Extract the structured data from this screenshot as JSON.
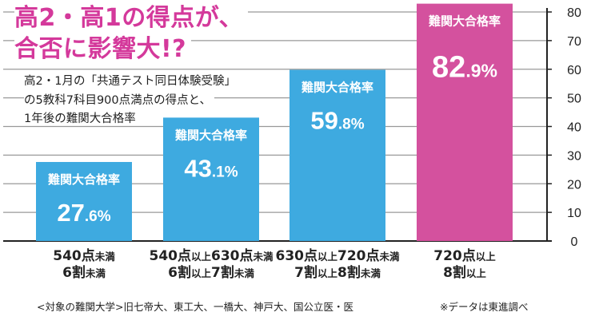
{
  "title_line1": "高2・高1の得点が、",
  "title_line2": "合否に影響大!?",
  "subtitle_lines": [
    "高2・1月の「共通テスト同日体験受験」",
    "の5教科7科目900点満点の得点と、",
    "1年後の難関大合格率"
  ],
  "footnote_left": "<対象の難関大学>旧七帝大、東工大、一橋大、神戸大、国公立医・医",
  "footnote_right": "※データは東進調べ",
  "colors": {
    "bar": "#3eaae0",
    "highlight": "#d4519e",
    "title": "#d4399b",
    "grid": "#999999"
  },
  "chart_data": {
    "type": "bar",
    "categories": [
      {
        "line1": [
          [
            "540点",
            "big"
          ],
          [
            "未満",
            "small"
          ]
        ],
        "line2": [
          [
            "6割",
            "big"
          ],
          [
            "未満",
            "small"
          ]
        ]
      },
      {
        "line1": [
          [
            "540点",
            "big"
          ],
          [
            "以上",
            "small"
          ],
          [
            "630点",
            "big"
          ],
          [
            "未満",
            "small"
          ]
        ],
        "line2": [
          [
            "6割",
            "big"
          ],
          [
            "以上",
            "small"
          ],
          [
            "7割",
            "big"
          ],
          [
            "未満",
            "small"
          ]
        ]
      },
      {
        "line1": [
          [
            "630点",
            "big"
          ],
          [
            "以上",
            "small"
          ],
          [
            "720点",
            "big"
          ],
          [
            "未満",
            "small"
          ]
        ],
        "line2": [
          [
            "7割",
            "big"
          ],
          [
            "以上",
            "small"
          ],
          [
            "8割",
            "big"
          ],
          [
            "未満",
            "small"
          ]
        ]
      },
      {
        "line1": [
          [
            "720点",
            "big"
          ],
          [
            "以上",
            "small"
          ]
        ],
        "line2": [
          [
            "8割",
            "big"
          ],
          [
            "以上",
            "small"
          ]
        ]
      }
    ],
    "series": [
      {
        "values": [
          27.6,
          43.1,
          59.8,
          82.9
        ]
      }
    ],
    "bar_label": "難関大合格率",
    "value_labels": [
      {
        "int": "27",
        "dec": ".6%"
      },
      {
        "int": "43",
        "dec": ".1%"
      },
      {
        "int": "59",
        "dec": ".8%"
      },
      {
        "int": "82",
        "dec": ".9%"
      }
    ],
    "highlight_index": 3,
    "yticks": [
      0,
      10,
      20,
      30,
      40,
      50,
      60,
      70,
      80
    ],
    "ylim": [
      0,
      80
    ],
    "y_axis_position": "right",
    "grid": true
  }
}
